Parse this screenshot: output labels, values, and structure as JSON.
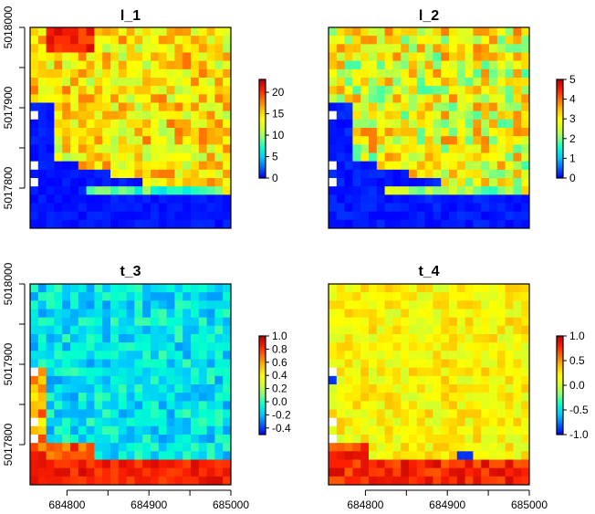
{
  "chart_data": [
    {
      "type": "heatmap",
      "title": "l_1",
      "value_range": [
        0,
        23
      ],
      "legend_ticks": [
        "0",
        "5",
        "10",
        "15",
        "20"
      ],
      "legend_tick_values": [
        0,
        5,
        10,
        15,
        20
      ],
      "x_axis_visible": false,
      "y_axis_visible": true,
      "pattern": "gamma"
    },
    {
      "type": "heatmap",
      "title": "l_2",
      "value_range": [
        0,
        5
      ],
      "legend_ticks": [
        "0",
        "1",
        "2",
        "3",
        "4",
        "5"
      ],
      "legend_tick_values": [
        0,
        1,
        2,
        3,
        4,
        5
      ],
      "x_axis_visible": false,
      "y_axis_visible": false,
      "pattern": "lambda"
    },
    {
      "type": "heatmap",
      "title": "t_3",
      "value_range": [
        -0.5,
        1.0
      ],
      "legend_ticks": [
        "-0.4",
        "-0.2",
        "0.0",
        "0.2",
        "0.4",
        "0.6",
        "0.8",
        "1.0"
      ],
      "legend_tick_values": [
        -0.4,
        -0.2,
        0.0,
        0.2,
        0.4,
        0.6,
        0.8,
        1.0
      ],
      "x_axis_visible": true,
      "y_axis_visible": true,
      "pattern": "tau3"
    },
    {
      "type": "heatmap",
      "title": "t_4",
      "value_range": [
        -1.0,
        1.0
      ],
      "legend_ticks": [
        "-1.0",
        "-0.5",
        "0.0",
        "0.5",
        "1.0"
      ],
      "legend_tick_values": [
        -1.0,
        -0.5,
        0.0,
        0.5,
        1.0
      ],
      "x_axis_visible": true,
      "y_axis_visible": false,
      "pattern": "tau4"
    }
  ],
  "axes": {
    "x_ticks": [
      "684800",
      "684900",
      "685000"
    ],
    "x_tick_values": [
      684800,
      684900,
      685000
    ],
    "x_range": [
      684755,
      685000
    ],
    "y_ticks": [
      "5017800",
      "5017900",
      "5018000"
    ],
    "y_tick_values": [
      5017800,
      5017900,
      5018000
    ],
    "y_range": [
      5017750,
      5018000
    ]
  },
  "grid": {
    "cols": 25,
    "rows": 24
  },
  "colors": {
    "palette": [
      "#0000ff",
      "#0066ff",
      "#00c8ff",
      "#00ffd0",
      "#7fff7f",
      "#d0ff30",
      "#ffff00",
      "#ffc000",
      "#ff7000",
      "#ff2000",
      "#c00000"
    ]
  }
}
